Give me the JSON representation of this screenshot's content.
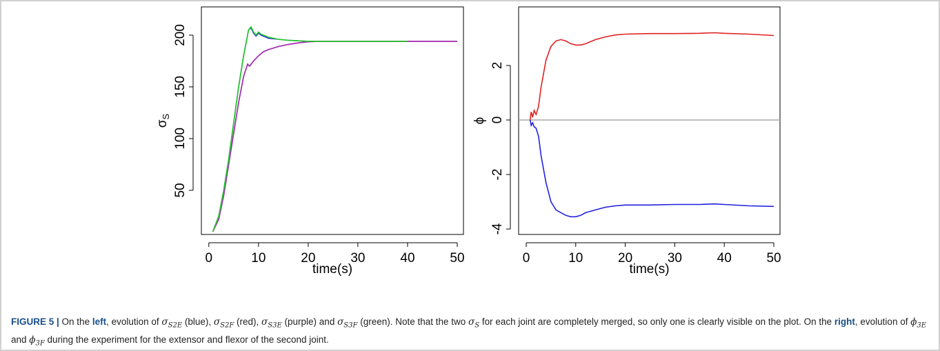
{
  "chart_data": [
    {
      "type": "line",
      "xlabel": "time(s)",
      "ylabel_parts": [
        "σ",
        "S"
      ],
      "xlim": [
        -1.5,
        51.25
      ],
      "xticks": [
        0,
        10,
        20,
        30,
        40,
        50
      ],
      "ylim": [
        7.3,
        227.3
      ],
      "yticks": [
        50,
        100,
        150,
        200
      ],
      "series": [
        {
          "color": "#2b2bd6",
          "x": [
            0.8,
            2,
            3,
            4,
            5,
            6,
            7,
            8,
            8.5,
            9,
            9.5,
            10,
            10.5,
            11,
            12,
            14,
            16,
            18,
            20,
            25,
            30,
            35,
            40
          ],
          "values": [
            10,
            25,
            50,
            80,
            115,
            150,
            180,
            205,
            207,
            202,
            199,
            202,
            200,
            199,
            197,
            196,
            195,
            194.5,
            194,
            194,
            194,
            194,
            194
          ]
        },
        {
          "color": "#e02020",
          "x": [
            0.8,
            2,
            3,
            4,
            5,
            6,
            7,
            7.8,
            8.2,
            9,
            10,
            11,
            12,
            14,
            16,
            18,
            20,
            22,
            25,
            30,
            40,
            50
          ],
          "values": [
            10,
            22,
            45,
            75,
            105,
            135,
            160,
            172,
            170,
            175,
            180,
            184,
            186,
            189,
            191,
            192.5,
            193.5,
            194,
            194,
            194,
            194,
            194
          ]
        },
        {
          "color": "#9b30c0",
          "x": [
            0.8,
            2,
            3,
            4,
            5,
            6,
            7,
            7.8,
            8.2,
            9,
            10,
            11,
            12,
            14,
            16,
            18,
            20,
            22,
            25,
            30,
            40,
            50
          ],
          "values": [
            10,
            22,
            45,
            75,
            105,
            135,
            160,
            172,
            170,
            175,
            180,
            184,
            186,
            189,
            191,
            192.5,
            193.5,
            194,
            194,
            194,
            194,
            194
          ]
        },
        {
          "color": "#22cc22",
          "x": [
            0.8,
            2,
            3,
            4,
            5,
            6,
            7,
            8,
            8.5,
            9,
            9.5,
            10,
            10.5,
            11,
            12,
            14,
            16,
            18,
            20,
            25,
            30,
            35,
            40
          ],
          "values": [
            10,
            25,
            50,
            80,
            115,
            150,
            180,
            205,
            208,
            203,
            200,
            203,
            201,
            200,
            198,
            196,
            195,
            194.5,
            194,
            194,
            194,
            194,
            194
          ]
        }
      ]
    },
    {
      "type": "line",
      "xlabel": "time(s)",
      "ylabel_parts": [
        "ϕ"
      ],
      "xlim": [
        -1.53,
        51.25
      ],
      "xticks": [
        0,
        10,
        20,
        30,
        40,
        50
      ],
      "ylim": [
        -4.2,
        4.15
      ],
      "yticks": [
        -4,
        -2,
        0,
        2
      ],
      "reference_line": {
        "value": 0,
        "color": "#aaaaaa"
      },
      "series": [
        {
          "color": "#e02020",
          "x": [
            0.8,
            1,
            1.3,
            1.6,
            2,
            2.5,
            3,
            4,
            5,
            6,
            7,
            8,
            9,
            10,
            11,
            12,
            14,
            16,
            18,
            20,
            25,
            30,
            35,
            38,
            40,
            45,
            50
          ],
          "values": [
            0,
            0.3,
            0.1,
            0.35,
            0.2,
            0.5,
            1.2,
            2.2,
            2.7,
            2.9,
            2.95,
            2.9,
            2.8,
            2.75,
            2.75,
            2.8,
            2.95,
            3.05,
            3.12,
            3.15,
            3.17,
            3.17,
            3.18,
            3.2,
            3.18,
            3.15,
            3.1
          ]
        },
        {
          "color": "#2020e0",
          "x": [
            0.8,
            1,
            1.3,
            1.6,
            2,
            2.5,
            3,
            4,
            5,
            6,
            7,
            8,
            9,
            10,
            11,
            12,
            14,
            16,
            18,
            20,
            25,
            30,
            35,
            38,
            40,
            45,
            50
          ],
          "values": [
            0,
            -0.2,
            -0.1,
            -0.25,
            -0.3,
            -0.6,
            -1.3,
            -2.3,
            -3,
            -3.3,
            -3.4,
            -3.5,
            -3.55,
            -3.55,
            -3.5,
            -3.4,
            -3.3,
            -3.2,
            -3.15,
            -3.12,
            -3.12,
            -3.1,
            -3.1,
            -3.08,
            -3.1,
            -3.15,
            -3.17
          ]
        }
      ]
    }
  ],
  "caption": {
    "parts": [
      "FIGURE 5 |",
      " On the ",
      "left",
      ", evolution of ",
      "σ",
      "S2E",
      " (blue), ",
      "σ",
      "S2F",
      " (red), ",
      "σ",
      "S3E",
      " (purple) and ",
      "σ",
      "S3F",
      " (green). Note that the two ",
      "σ",
      "S",
      " for each joint are completely merged, so only one is clearly visible on the plot. On the ",
      "right",
      ", evolution of ",
      "ϕ",
      "3E",
      " and ",
      "ϕ",
      "3F",
      " during the experiment for the extensor and flexor of the second joint."
    ]
  }
}
